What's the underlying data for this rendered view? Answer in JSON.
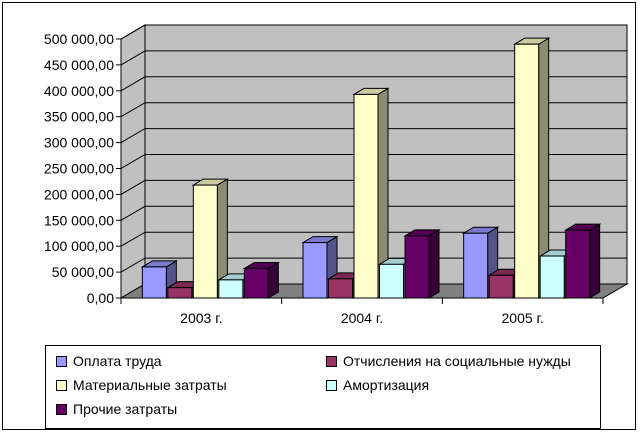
{
  "chart_data": {
    "type": "bar",
    "categories": [
      "2003 г.",
      "2004 г.",
      "2005 г."
    ],
    "series": [
      {
        "name": "Оплата труда",
        "values": [
          60000,
          107000,
          125000
        ],
        "color": "#9999ff"
      },
      {
        "name": "Отчисления на социальные нужды",
        "values": [
          20000,
          37000,
          44000
        ],
        "color": "#993366"
      },
      {
        "name": "Материальные затраты",
        "values": [
          218000,
          393000,
          490000
        ],
        "color": "#ffffcc"
      },
      {
        "name": "Амортизация",
        "values": [
          35000,
          65000,
          81000
        ],
        "color": "#ccffff"
      },
      {
        "name": "Прочие затраты",
        "values": [
          57000,
          120000,
          131000
        ],
        "color": "#660066"
      }
    ],
    "ylim": [
      0,
      500000
    ],
    "yticks": [
      "0,00",
      "50 000,00",
      "100 000,00",
      "150 000,00",
      "200 000,00",
      "250 000,00",
      "300 000,00",
      "350 000,00",
      "400 000,00",
      "450 000,00",
      "500 000,00"
    ],
    "grid": true,
    "three_d": true,
    "wall_color": "#c0c0c0",
    "floor_color": "#808080",
    "legend_position": "bottom"
  }
}
